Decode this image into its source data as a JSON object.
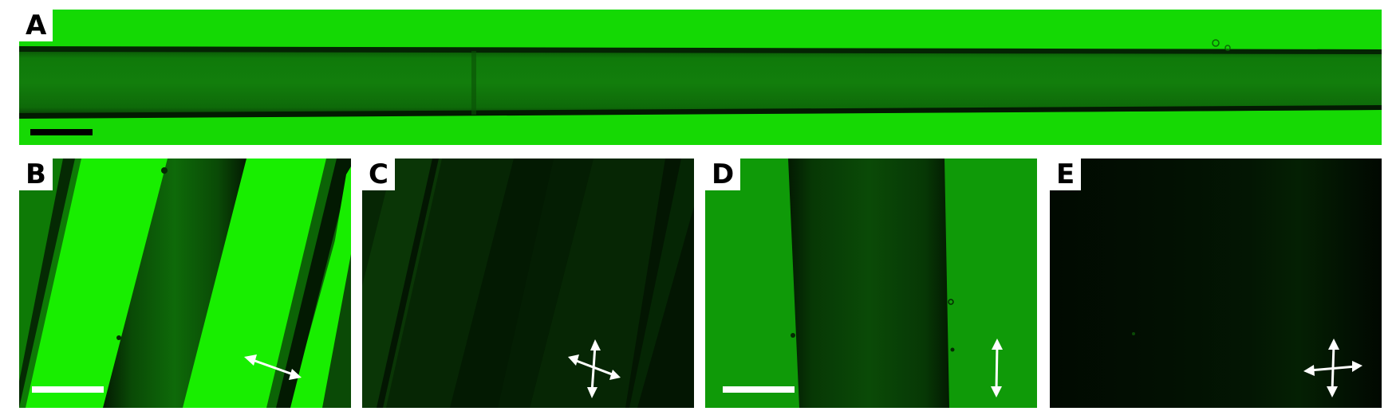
{
  "figure": {
    "panels": [
      {
        "label": "A",
        "content": "fiber-longitudinal-bright"
      },
      {
        "label": "B",
        "content": "fiber-diagonal-parallel-polarizers"
      },
      {
        "label": "C",
        "content": "fiber-diagonal-crossed-polarizers"
      },
      {
        "label": "D",
        "content": "fiber-vertical-parallel-polarizers"
      },
      {
        "label": "E",
        "content": "fiber-vertical-crossed-polarizers"
      }
    ]
  },
  "colors": {
    "bright_green": "#16e000",
    "mid_green": "#0f9a08",
    "dark_green": "#021402",
    "scale_bar_dark": "#000000",
    "scale_bar_light": "#ffffff",
    "arrow": "#ffffff"
  },
  "icons": {
    "B": "double-arrow-diagonal-icon",
    "C": "crossed-arrows-icon",
    "D": "double-arrow-vertical-icon",
    "E": "crossed-arrows-icon"
  }
}
